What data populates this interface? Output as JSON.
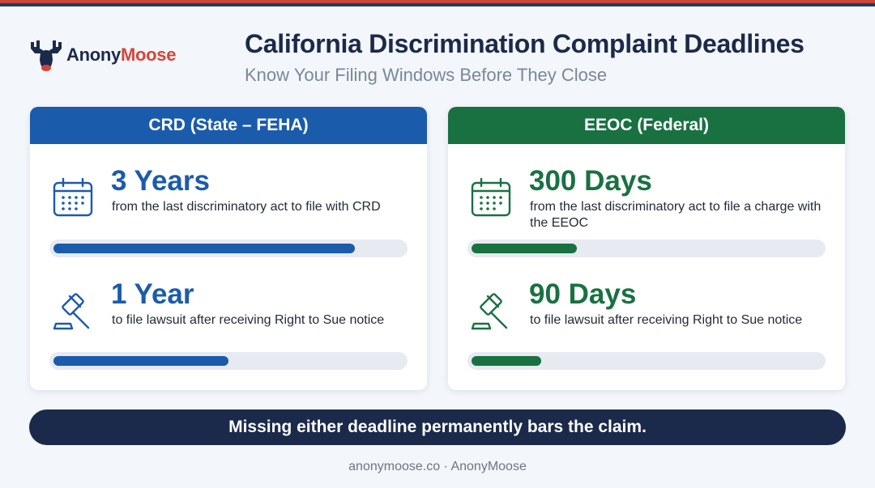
{
  "brand": {
    "name_part1": "Anony",
    "name_part2": "Moose",
    "logo_icon": "moose-head-icon"
  },
  "header": {
    "title": "California Discrimination Complaint Deadlines",
    "subtitle": "Know Your Filing Windows Before They Close"
  },
  "colors": {
    "navy": "#1b2a4a",
    "state_blue": "#1b5bab",
    "federal_green": "#197142",
    "accent_red": "#d2463b"
  },
  "cards": [
    {
      "heading": "CRD (State – FEHA)",
      "items": [
        {
          "icon": "calendar-icon",
          "value": "3 Years",
          "description": "from the last discriminatory act to file with CRD",
          "progress": 0.86
        },
        {
          "icon": "gavel-icon",
          "value": "1 Year",
          "description": "to file lawsuit after receiving Right to Sue notice",
          "progress": 0.5
        }
      ]
    },
    {
      "heading": "EEOC (Federal)",
      "items": [
        {
          "icon": "calendar-icon",
          "value": "300 Days",
          "description": "from the last discriminatory act to file a charge with the EEOC",
          "progress": 0.3
        },
        {
          "icon": "gavel-icon",
          "value": "90 Days",
          "description": "to file lawsuit after receiving Right to Sue notice",
          "progress": 0.2
        }
      ]
    }
  ],
  "banner": "Missing either deadline permanently bars the claim.",
  "footer": "anonymoose.co · AnonyMoose"
}
